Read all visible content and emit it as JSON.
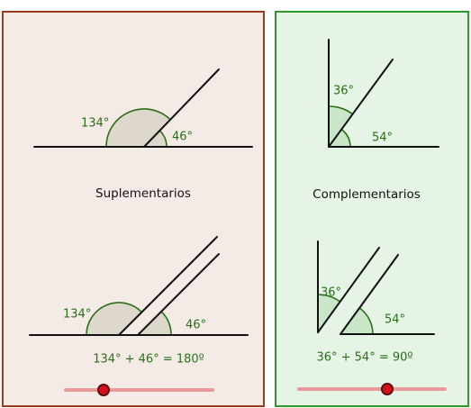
{
  "supplementary": {
    "title": "Suplementarios",
    "top": {
      "large_angle": "134°",
      "small_angle": "46°"
    },
    "bottom": {
      "large_angle": "134°",
      "small_angle": "46°",
      "equation": "134° + 46° = 180º"
    }
  },
  "complementary": {
    "title": "Complementarios",
    "top": {
      "upper_angle": "36°",
      "lower_angle": "54°"
    },
    "bottom": {
      "upper_angle": "36°",
      "lower_angle": "54°",
      "equation": "36° + 54° = 90º"
    }
  }
}
